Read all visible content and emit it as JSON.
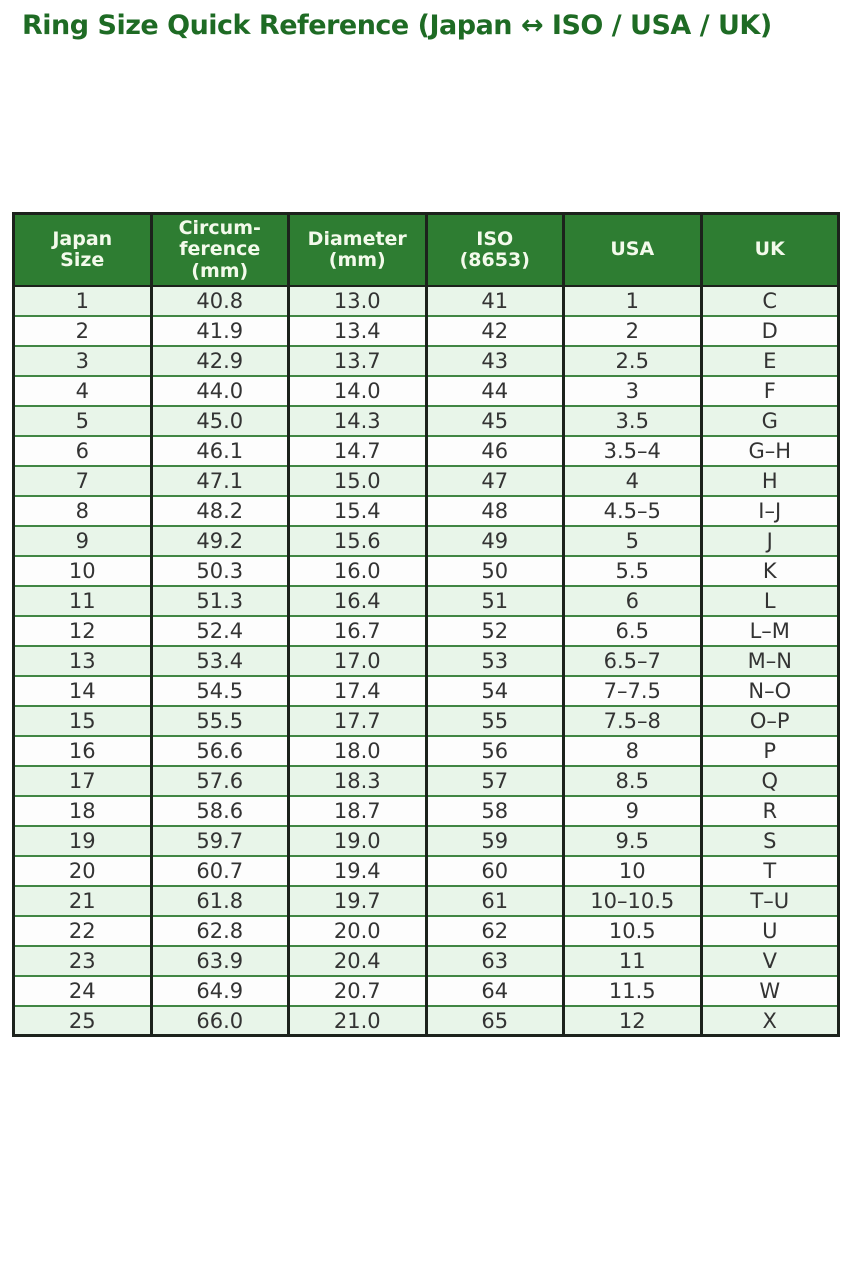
{
  "page": {
    "title": "Ring Size Quick Reference (Japan ↔ ISO / USA / UK)"
  },
  "colors": {
    "title_text": "#1e6b24",
    "header_bg": "#2e7d32",
    "header_text": "#f3faeb",
    "row_odd_bg": "#e8f5e9",
    "row_even_bg": "#fdfdfd",
    "border_dark": "#1c221c",
    "border_green": "#418644",
    "cell_text": "#333333",
    "page_bg": "#ffffff"
  },
  "table": {
    "columns": [
      {
        "id": "japan-size",
        "label": "Japan Size",
        "label_lines": [
          "Japan",
          "Size"
        ]
      },
      {
        "id": "circumference-mm",
        "label": "Circum-ference (mm)",
        "label_lines": [
          "Circum-",
          "ference",
          "(mm)"
        ]
      },
      {
        "id": "diameter-mm",
        "label": "Diameter (mm)",
        "label_lines": [
          "Diameter",
          "(mm)"
        ]
      },
      {
        "id": "iso-8653",
        "label": "ISO (8653)",
        "label_lines": [
          "ISO",
          "(8653)"
        ]
      },
      {
        "id": "usa",
        "label": "USA",
        "label_lines": [
          "USA"
        ]
      },
      {
        "id": "uk",
        "label": "UK",
        "label_lines": [
          "UK"
        ]
      }
    ],
    "rows": [
      [
        "1",
        "40.8",
        "13.0",
        "41",
        "1",
        "C"
      ],
      [
        "2",
        "41.9",
        "13.4",
        "42",
        "2",
        "D"
      ],
      [
        "3",
        "42.9",
        "13.7",
        "43",
        "2.5",
        "E"
      ],
      [
        "4",
        "44.0",
        "14.0",
        "44",
        "3",
        "F"
      ],
      [
        "5",
        "45.0",
        "14.3",
        "45",
        "3.5",
        "G"
      ],
      [
        "6",
        "46.1",
        "14.7",
        "46",
        "3.5–4",
        "G–H"
      ],
      [
        "7",
        "47.1",
        "15.0",
        "47",
        "4",
        "H"
      ],
      [
        "8",
        "48.2",
        "15.4",
        "48",
        "4.5–5",
        "I–J"
      ],
      [
        "9",
        "49.2",
        "15.6",
        "49",
        "5",
        "J"
      ],
      [
        "10",
        "50.3",
        "16.0",
        "50",
        "5.5",
        "K"
      ],
      [
        "11",
        "51.3",
        "16.4",
        "51",
        "6",
        "L"
      ],
      [
        "12",
        "52.4",
        "16.7",
        "52",
        "6.5",
        "L–M"
      ],
      [
        "13",
        "53.4",
        "17.0",
        "53",
        "6.5–7",
        "M–N"
      ],
      [
        "14",
        "54.5",
        "17.4",
        "54",
        "7–7.5",
        "N–O"
      ],
      [
        "15",
        "55.5",
        "17.7",
        "55",
        "7.5–8",
        "O–P"
      ],
      [
        "16",
        "56.6",
        "18.0",
        "56",
        "8",
        "P"
      ],
      [
        "17",
        "57.6",
        "18.3",
        "57",
        "8.5",
        "Q"
      ],
      [
        "18",
        "58.6",
        "18.7",
        "58",
        "9",
        "R"
      ],
      [
        "19",
        "59.7",
        "19.0",
        "59",
        "9.5",
        "S"
      ],
      [
        "20",
        "60.7",
        "19.4",
        "60",
        "10",
        "T"
      ],
      [
        "21",
        "61.8",
        "19.7",
        "61",
        "10–10.5",
        "T–U"
      ],
      [
        "22",
        "62.8",
        "20.0",
        "62",
        "10.5",
        "U"
      ],
      [
        "23",
        "63.9",
        "20.4",
        "63",
        "11",
        "V"
      ],
      [
        "24",
        "64.9",
        "20.7",
        "64",
        "11.5",
        "W"
      ],
      [
        "25",
        "66.0",
        "21.0",
        "65",
        "12",
        "X"
      ]
    ]
  }
}
